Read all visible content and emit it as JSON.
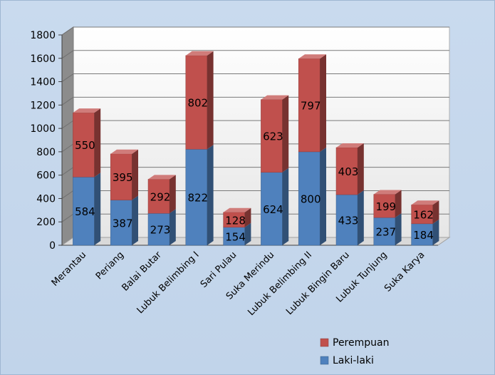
{
  "chart_data": {
    "type": "bar",
    "stacked": true,
    "style": "3d",
    "categories": [
      "Merantau",
      "Periang",
      "Balai Butar",
      "Lubuk Belimbing I",
      "Sari Pulau",
      "Suka Merindu",
      "Lubuk Belimbing II",
      "Lubuk Bingin Baru",
      "Lubuk Tunjung",
      "Suka Karya"
    ],
    "series": [
      {
        "name": "Laki-laki",
        "color": "#4f81bd",
        "values": [
          584,
          387,
          273,
          822,
          154,
          624,
          800,
          433,
          237,
          184
        ]
      },
      {
        "name": "Perempuan",
        "color": "#c0504d",
        "values": [
          550,
          395,
          292,
          802,
          128,
          623,
          797,
          403,
          199,
          162
        ]
      }
    ],
    "yticks": [
      "0",
      "200",
      "400",
      "600",
      "800",
      "1000",
      "1200",
      "1400",
      "1600",
      "1800"
    ],
    "ylim": [
      0,
      1800
    ],
    "grid": true,
    "legend": "bottom-right",
    "title": "",
    "xlabel": "",
    "ylabel": ""
  }
}
